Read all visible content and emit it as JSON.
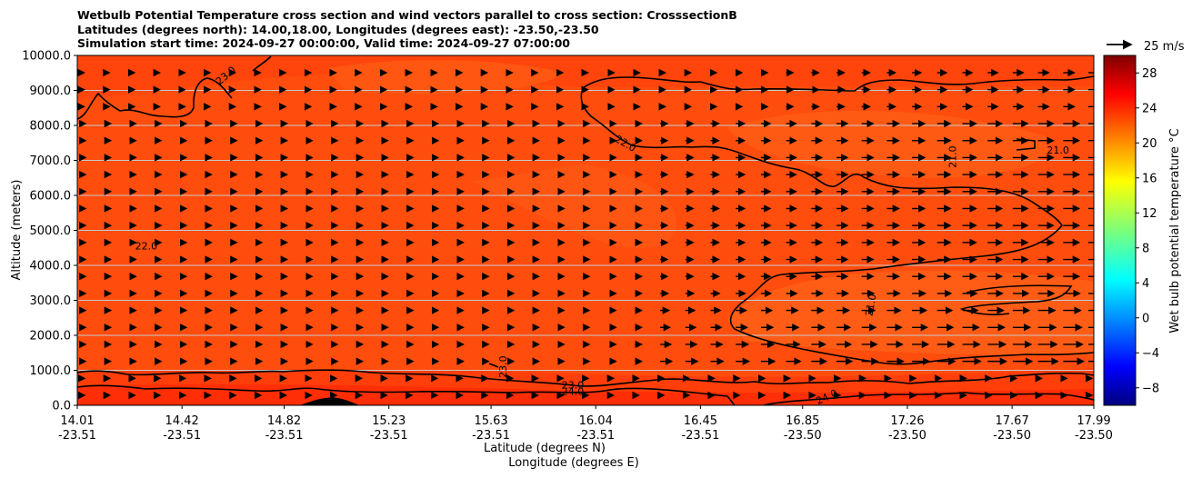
{
  "title_lines": [
    "Wetbulb Potential Temperature cross section and wind vectors parallel to cross section: CrosssectionB",
    "Latitudes (degrees north): 14.00,18.00, Longitudes (degrees east): -23.50,-23.50",
    "Simulation start time: 2024-09-27 00:00:00, Valid time: 2024-09-27 07:00:00"
  ],
  "chart_data": {
    "type": "heatmap",
    "ylabel": "Altitude (meters)",
    "xlabel_lines": [
      "Latitude (degrees N)",
      "Longitude (degrees E)"
    ],
    "ylim": [
      0,
      10000
    ],
    "yticks": [
      "0.0",
      "1000.0",
      "2000.0",
      "3000.0",
      "4000.0",
      "5000.0",
      "6000.0",
      "7000.0",
      "8000.0",
      "9000.0",
      "10000.0"
    ],
    "y_tick_values": [
      0,
      1000,
      2000,
      3000,
      4000,
      5000,
      6000,
      7000,
      8000,
      9000,
      10000
    ],
    "x_tick_values": [
      14.01,
      14.42,
      14.82,
      15.23,
      15.63,
      16.04,
      16.45,
      16.85,
      17.26,
      17.67,
      17.99
    ],
    "x_tick_labels": [
      {
        "lat": "14.01",
        "lon": "-23.51"
      },
      {
        "lat": "14.42",
        "lon": "-23.51"
      },
      {
        "lat": "14.82",
        "lon": "-23.51"
      },
      {
        "lat": "15.23",
        "lon": "-23.51"
      },
      {
        "lat": "15.63",
        "lon": "-23.51"
      },
      {
        "lat": "16.04",
        "lon": "-23.51"
      },
      {
        "lat": "16.45",
        "lon": "-23.51"
      },
      {
        "lat": "16.85",
        "lon": "-23.50"
      },
      {
        "lat": "17.26",
        "lon": "-23.50"
      },
      {
        "lat": "17.67",
        "lon": "-23.50"
      },
      {
        "lat": "17.99",
        "lon": "-23.50"
      }
    ],
    "grid": "horizontal",
    "colorbar": {
      "label": "Wet bulb potential temperature °C",
      "min": -10,
      "max": 30,
      "ticks": [
        "28",
        "24",
        "20",
        "16",
        "12",
        "8",
        "4",
        "0",
        "−4",
        "−8"
      ],
      "tick_values": [
        28,
        24,
        20,
        16,
        12,
        8,
        4,
        0,
        -4,
        -8
      ]
    },
    "quiver_key": {
      "label": "25 m/s"
    },
    "contour_labels": [
      {
        "text": "23.0",
        "lat": 14.6,
        "alt": 9350,
        "angle": -40
      },
      {
        "text": "22.0",
        "lat": 14.28,
        "alt": 4450,
        "angle": 0
      },
      {
        "text": "22.0",
        "lat": 16.15,
        "alt": 7400,
        "angle": 30
      },
      {
        "text": "21.0",
        "lat": 17.45,
        "alt": 7100,
        "angle": -90
      },
      {
        "text": "21.0",
        "lat": 17.85,
        "alt": 7200,
        "angle": 0
      },
      {
        "text": "21.0",
        "lat": 17.13,
        "alt": 2850,
        "angle": -80
      },
      {
        "text": "23.0",
        "lat": 15.69,
        "alt": 1100,
        "angle": -90
      },
      {
        "text": "23.0",
        "lat": 15.95,
        "alt": 480,
        "angle": 0
      },
      {
        "text": "24.0",
        "lat": 15.95,
        "alt": 300,
        "angle": 0
      },
      {
        "text": "24.0",
        "lat": 16.95,
        "alt": 150,
        "angle": -25
      }
    ]
  }
}
